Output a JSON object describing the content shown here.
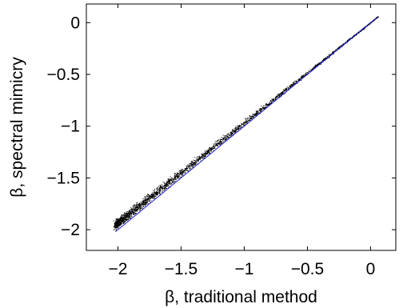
{
  "chart_data": {
    "type": "scatter",
    "title": "",
    "xlabel": "β, traditional method",
    "ylabel": "β, spectral mimicry",
    "xlim": [
      -2.25,
      0.2
    ],
    "ylim": [
      -2.2,
      0.18
    ],
    "xticks": [
      {
        "value": -2,
        "label": "−2"
      },
      {
        "value": -1.5,
        "label": "−1.5"
      },
      {
        "value": -1,
        "label": "−1"
      },
      {
        "value": -0.5,
        "label": "−0.5"
      },
      {
        "value": 0,
        "label": "0"
      }
    ],
    "yticks": [
      {
        "value": 0,
        "label": "0"
      },
      {
        "value": -0.5,
        "label": "−0.5"
      },
      {
        "value": -1,
        "label": "−1"
      },
      {
        "value": -1.5,
        "label": "−1.5"
      },
      {
        "value": -2,
        "label": "−2"
      }
    ],
    "grid": false,
    "legend": "none",
    "series": [
      {
        "kind": "points",
        "color": "#000000",
        "trend": {
          "x_range": [
            -2.02,
            0.06
          ],
          "start_offset": 0.07,
          "end_offset": 0.0
        },
        "points": [
          [
            -2.0,
            -1.95
          ],
          [
            -1.98,
            -1.9
          ],
          [
            -1.96,
            -1.88
          ],
          [
            -1.97,
            -1.86
          ],
          [
            -2.01,
            -1.92
          ],
          [
            -1.95,
            -1.93
          ],
          [
            -1.93,
            -1.87
          ],
          [
            -1.92,
            -1.9
          ],
          [
            -1.9,
            -1.84
          ],
          [
            -1.89,
            -1.8
          ],
          [
            -1.88,
            -1.83
          ],
          [
            -1.86,
            -1.79
          ],
          [
            -1.85,
            -1.76
          ],
          [
            -1.83,
            -1.76
          ],
          [
            -1.8,
            -1.73
          ],
          [
            -1.78,
            -1.71
          ],
          [
            -1.76,
            -1.7
          ],
          [
            -1.73,
            -1.66
          ],
          [
            -1.7,
            -1.65
          ],
          [
            -1.67,
            -1.6
          ],
          [
            -1.65,
            -1.6
          ],
          [
            -1.62,
            -1.57
          ],
          [
            -1.6,
            -1.53
          ],
          [
            -1.58,
            -1.52
          ],
          [
            -1.55,
            -1.5
          ],
          [
            -1.5,
            -1.46
          ],
          [
            -1.45,
            -1.41
          ],
          [
            -1.4,
            -1.36
          ],
          [
            -1.35,
            -1.31
          ],
          [
            -1.3,
            -1.27
          ],
          [
            -1.25,
            -1.22
          ],
          [
            -1.2,
            -1.17
          ],
          [
            -1.15,
            -1.13
          ],
          [
            -1.1,
            -1.08
          ],
          [
            -1.05,
            -1.03
          ],
          [
            -1.0,
            -0.99
          ],
          [
            -0.9,
            -0.89
          ],
          [
            -0.8,
            -0.79
          ],
          [
            -0.7,
            -0.69
          ],
          [
            -0.6,
            -0.59
          ],
          [
            -0.5,
            -0.5
          ],
          [
            -0.4,
            -0.4
          ],
          [
            -0.3,
            -0.3
          ],
          [
            -0.2,
            -0.2
          ],
          [
            -0.1,
            -0.1
          ],
          [
            0.0,
            0.0
          ],
          [
            0.05,
            0.05
          ]
        ]
      },
      {
        "kind": "line",
        "color": "#1f1fcf",
        "x": [
          -2.02,
          0.06
        ],
        "y": [
          -2.02,
          0.06
        ]
      }
    ]
  }
}
